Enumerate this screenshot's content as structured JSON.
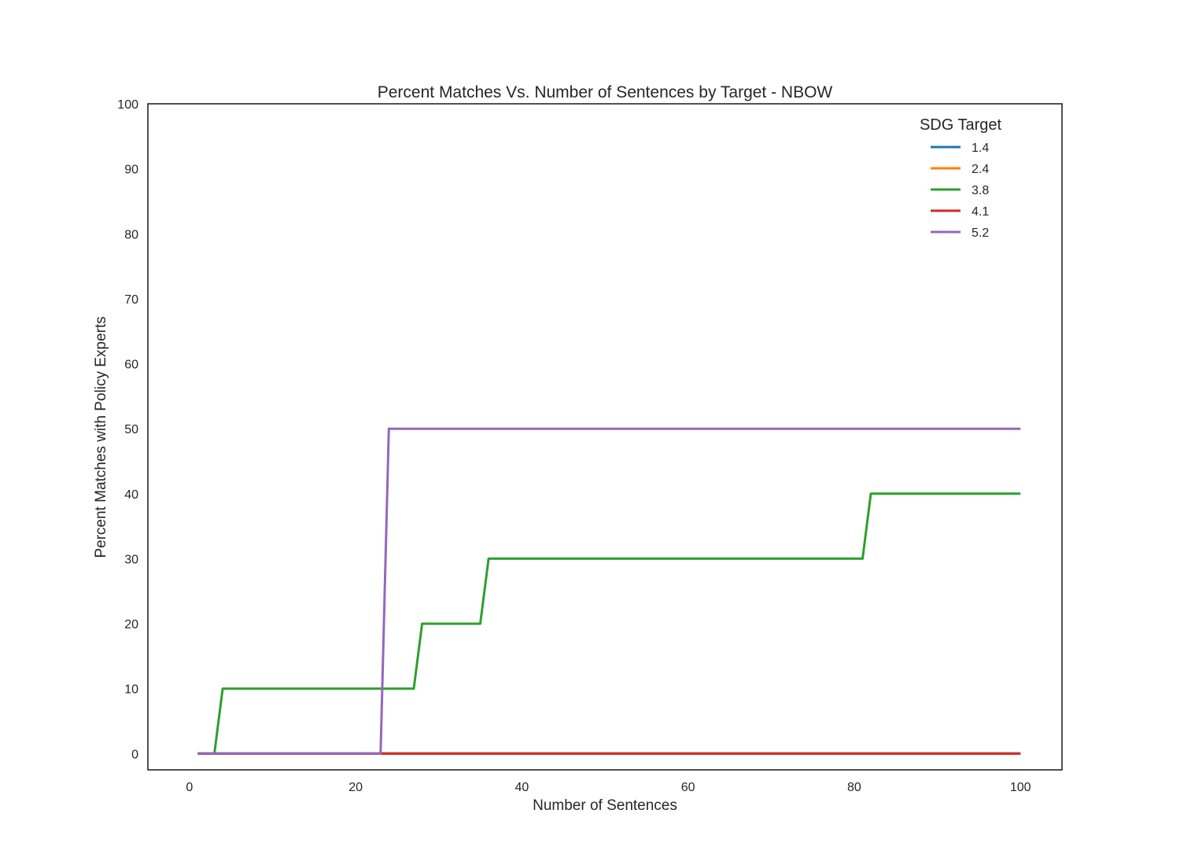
{
  "chart_data": {
    "type": "line",
    "title": "Percent Matches Vs. Number of Sentences by Target - NBOW",
    "xlabel": "Number of Sentences",
    "ylabel": "Percent Matches with Policy Experts",
    "xlim": [
      -5,
      105
    ],
    "ylim": [
      -2.5,
      100
    ],
    "xticks": [
      0,
      20,
      40,
      60,
      80,
      100
    ],
    "yticks": [
      0,
      10,
      20,
      30,
      40,
      50,
      60,
      70,
      80,
      90,
      100
    ],
    "grid": false,
    "legend": {
      "title": "SDG Target",
      "placement": "top-right"
    },
    "series": [
      {
        "name": "1.4",
        "color": "#1f77b4",
        "x": [
          1,
          100
        ],
        "y": [
          0,
          0
        ]
      },
      {
        "name": "2.4",
        "color": "#ff7f0e",
        "x": [
          1,
          100
        ],
        "y": [
          0,
          0
        ]
      },
      {
        "name": "3.8",
        "color": "#2ca02c",
        "x": [
          1,
          3,
          4,
          27,
          28,
          35,
          36,
          81,
          82,
          100
        ],
        "y": [
          0,
          0,
          10,
          10,
          20,
          20,
          30,
          30,
          40,
          40
        ]
      },
      {
        "name": "4.1",
        "color": "#d62728",
        "x": [
          1,
          100
        ],
        "y": [
          0,
          0
        ]
      },
      {
        "name": "5.2",
        "color": "#9467bd",
        "x": [
          1,
          23,
          24,
          100
        ],
        "y": [
          0,
          0,
          50,
          50
        ]
      }
    ]
  }
}
